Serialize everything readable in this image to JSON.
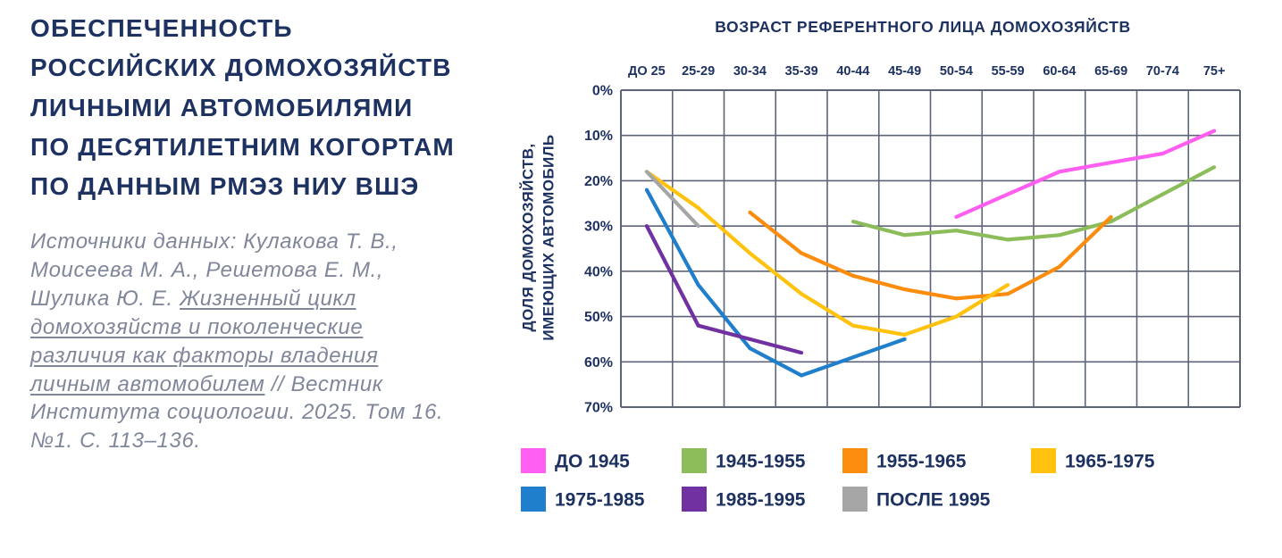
{
  "chart_data": {
    "type": "line",
    "title": [
      "ОБЕСПЕЧЕННОСТЬ",
      "РОССИЙСКИХ ДОМОХОЗЯЙСТВ",
      "ЛИЧНЫМИ АВТОМОБИЛЯМИ",
      "ПО ДЕСЯТИЛЕТНИМ КОГОРТАМ",
      "ПО ДАННЫМ РМЭЗ НИУ ВШЭ"
    ],
    "xlabel": "ВОЗРАСТ РЕФЕРЕНТНОГО ЛИЦА ДОМОХОЗЯЙСТВ",
    "ylabel": [
      "ДОЛЯ ДОМОХОЗЯЙСТВ,",
      "ИМЕЮЩИХ АВТОМОБИЛЬ"
    ],
    "categories": [
      "ДО 25",
      "25-29",
      "30-34",
      "35-39",
      "40-44",
      "45-49",
      "50-54",
      "55-59",
      "60-64",
      "65-69",
      "70-74",
      "75+"
    ],
    "x_axis_position": "top",
    "yticks": [
      "0%",
      "10%",
      "20%",
      "30%",
      "40%",
      "50%",
      "60%",
      "70%"
    ],
    "ylim": [
      0,
      70
    ],
    "y_axis_reversed": true,
    "grid": true,
    "legend_position": "bottom",
    "series": [
      {
        "name": "ДО 1945",
        "color": "#ff5ef0",
        "values": [
          null,
          null,
          null,
          null,
          null,
          null,
          28,
          23,
          18,
          16,
          14,
          9
        ]
      },
      {
        "name": "1945-1955",
        "color": "#8cbd5a",
        "values": [
          null,
          null,
          null,
          null,
          29,
          32,
          31,
          33,
          32,
          29,
          23,
          17
        ]
      },
      {
        "name": "1955-1965",
        "color": "#fb8c0d",
        "values": [
          null,
          null,
          27,
          36,
          41,
          44,
          46,
          45,
          39,
          28,
          null,
          null
        ]
      },
      {
        "name": "1965-1975",
        "color": "#ffc20e",
        "values": [
          18,
          26,
          36,
          45,
          52,
          54,
          50,
          43,
          null,
          null,
          null,
          null
        ]
      },
      {
        "name": "1975-1985",
        "color": "#1f7fcc",
        "values": [
          22,
          43,
          57,
          63,
          59,
          55,
          null,
          null,
          null,
          null,
          null,
          null
        ]
      },
      {
        "name": "1985-1995",
        "color": "#7131a1",
        "values": [
          30,
          52,
          55,
          58,
          null,
          null,
          null,
          null,
          null,
          null,
          null,
          null
        ]
      },
      {
        "name": "ПОСЛЕ 1995",
        "color": "#a6a6a6",
        "values": [
          18,
          30,
          null,
          null,
          null,
          null,
          null,
          null,
          null,
          null,
          null,
          null
        ]
      }
    ]
  },
  "source": {
    "lines": [
      [
        "Источники данных: Кулакова Т. В.,"
      ],
      [
        "Моисеева М. А., Решетова Е. М.,"
      ],
      [
        "Шулика Ю. Е.",
        "Жизненный цикл"
      ],
      [
        "домохозяйств и поколенческие"
      ],
      [
        "различия как факторы владения"
      ],
      [
        "личным автомобилем",
        "// Вестник"
      ],
      [
        "Института социологии. 2025. Том 16."
      ],
      [
        "№1. С. 113–136."
      ]
    ]
  }
}
